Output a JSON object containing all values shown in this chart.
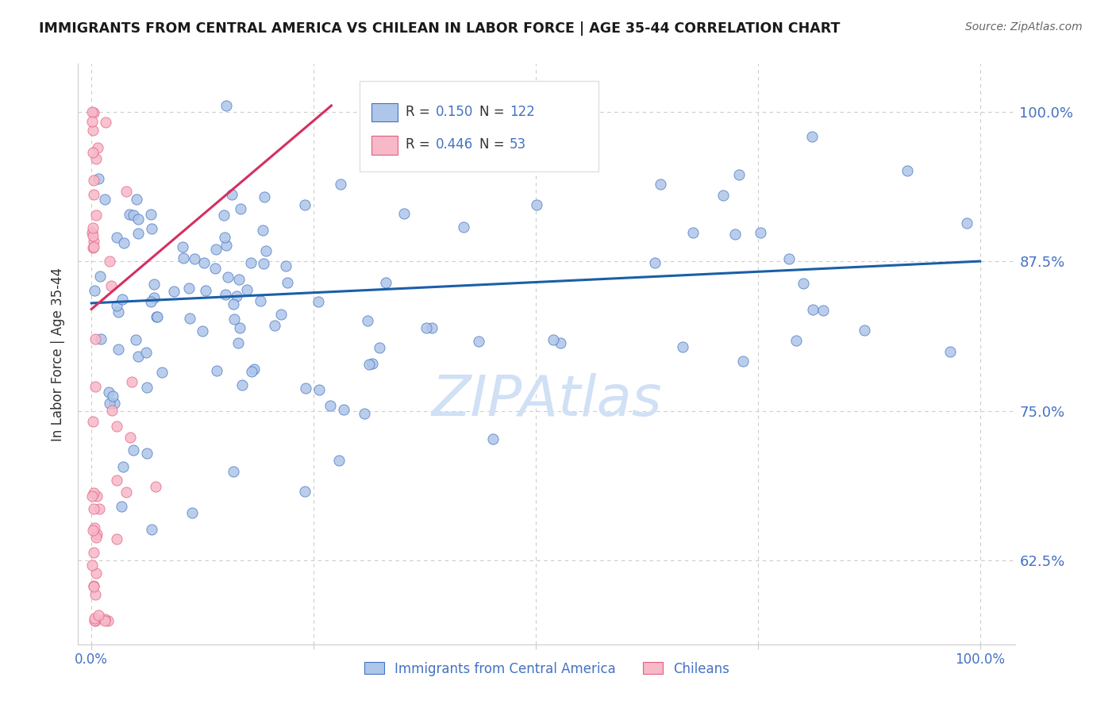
{
  "title": "IMMIGRANTS FROM CENTRAL AMERICA VS CHILEAN IN LABOR FORCE | AGE 35-44 CORRELATION CHART",
  "source": "Source: ZipAtlas.com",
  "ylabel": "In Labor Force | Age 35-44",
  "ytick_labels": [
    "62.5%",
    "75.0%",
    "87.5%",
    "100.0%"
  ],
  "ytick_values": [
    0.625,
    0.75,
    0.875,
    1.0
  ],
  "xtick_labels": [
    "0.0%",
    "100.0%"
  ],
  "xtick_values": [
    0.0,
    1.0
  ],
  "xlim": [
    -0.015,
    1.04
  ],
  "ylim": [
    0.555,
    1.04
  ],
  "blue_R": "0.150",
  "blue_N": "122",
  "pink_R": "0.446",
  "pink_N": "53",
  "blue_dot_color": "#aec6e8",
  "blue_dot_edge": "#4472c4",
  "pink_dot_color": "#f7b8c8",
  "pink_dot_edge": "#e06080",
  "blue_line_color": "#1a5fa8",
  "pink_line_color": "#d43060",
  "legend_label_blue": "Immigrants from Central America",
  "legend_label_pink": "Chileans",
  "watermark": "ZIPAtlas",
  "watermark_color": "#d0e0f5",
  "title_color": "#1a1a1a",
  "rn_label_color": "#333333",
  "rn_value_color": "#4472c4",
  "axis_tick_color": "#4472c4",
  "grid_color": "#cccccc",
  "blue_trend_x0": 0.0,
  "blue_trend_x1": 1.0,
  "blue_trend_y0": 0.84,
  "blue_trend_y1": 0.875,
  "pink_trend_x0": 0.0,
  "pink_trend_x1": 0.27,
  "pink_trend_y0": 0.835,
  "pink_trend_y1": 1.005
}
